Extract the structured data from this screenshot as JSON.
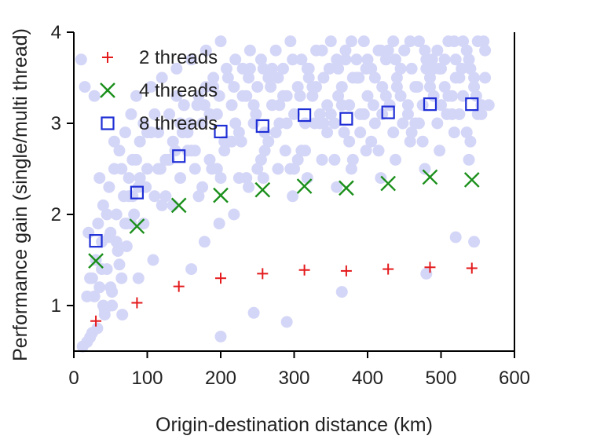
{
  "chart_data": {
    "type": "scatter",
    "xlabel": "Origin-destination distance (km)",
    "ylabel": "Performance gain (single/multi thread)",
    "xlim": [
      0,
      600
    ],
    "ylim": [
      0.5,
      4
    ],
    "xticks": [
      0,
      100,
      200,
      300,
      400,
      500,
      600
    ],
    "xtick_labels": [
      "0",
      "100",
      "200",
      "300",
      "400",
      "500",
      "600"
    ],
    "yticks": [
      1,
      2,
      3,
      4
    ],
    "ytick_labels": [
      "1",
      "2",
      "3",
      "4"
    ],
    "grid": false,
    "legend_position": "top-left",
    "series": [
      {
        "name": "2 threads",
        "marker": "plus",
        "color": "#e41a1c",
        "x": [
          30,
          86,
          143,
          200,
          257,
          314,
          371,
          428,
          485,
          542
        ],
        "y": [
          0.83,
          1.03,
          1.21,
          1.3,
          1.35,
          1.39,
          1.38,
          1.4,
          1.42,
          1.41
        ]
      },
      {
        "name": "4 threads",
        "marker": "x",
        "color": "#1a8f1a",
        "x": [
          30,
          86,
          143,
          200,
          257,
          314,
          371,
          428,
          485,
          542
        ],
        "y": [
          1.49,
          1.87,
          2.1,
          2.21,
          2.27,
          2.31,
          2.29,
          2.34,
          2.41,
          2.38
        ]
      },
      {
        "name": "8 threads",
        "marker": "square",
        "color": "#1f2fd6",
        "x": [
          30,
          86,
          143,
          200,
          257,
          314,
          371,
          428,
          485,
          542
        ],
        "y": [
          1.71,
          2.24,
          2.64,
          2.91,
          2.97,
          3.09,
          3.05,
          3.12,
          3.21,
          3.21
        ]
      }
    ],
    "background_scatter": {
      "color": "#d4d6f7",
      "x": [
        12,
        18,
        22,
        25,
        28,
        30,
        33,
        35,
        38,
        40,
        42,
        45,
        48,
        50,
        52,
        55,
        58,
        60,
        62,
        65,
        68,
        70,
        72,
        75,
        78,
        80,
        82,
        85,
        88,
        90,
        95,
        100,
        105,
        110,
        115,
        120,
        125,
        130,
        135,
        140,
        145,
        150,
        155,
        160,
        165,
        170,
        175,
        180,
        185,
        190,
        195,
        200,
        205,
        210,
        215,
        220,
        225,
        230,
        235,
        240,
        245,
        250,
        255,
        260,
        265,
        270,
        275,
        280,
        285,
        290,
        295,
        300,
        305,
        310,
        315,
        320,
        325,
        330,
        335,
        340,
        345,
        350,
        355,
        360,
        365,
        370,
        375,
        380,
        385,
        390,
        395,
        400,
        405,
        410,
        415,
        420,
        425,
        430,
        435,
        440,
        445,
        450,
        455,
        460,
        465,
        470,
        475,
        480,
        485,
        490,
        495,
        500,
        505,
        510,
        515,
        520,
        525,
        530,
        535,
        540,
        545,
        550,
        555,
        560,
        20,
        35,
        55,
        75,
        95,
        115,
        135,
        155,
        175,
        195,
        215,
        235,
        255,
        275,
        295,
        315,
        335,
        355,
        375,
        395,
        415,
        435,
        455,
        475,
        495,
        515,
        535,
        555,
        25,
        45,
        65,
        85,
        105,
        125,
        145,
        165,
        185,
        205,
        225,
        245,
        265,
        285,
        305,
        325,
        345,
        365,
        385,
        405,
        425,
        445,
        465,
        485,
        505,
        525,
        545,
        565,
        15,
        40,
        60,
        80,
        100,
        120,
        140,
        160,
        180,
        200,
        220,
        240,
        260,
        280,
        300,
        320,
        340,
        360,
        380,
        400,
        420,
        440,
        460,
        480,
        500,
        520,
        540,
        560,
        28,
        50,
        70,
        90,
        110,
        130,
        150,
        170,
        190,
        210,
        230,
        250,
        270,
        290,
        310,
        330,
        350,
        370,
        390,
        410,
        430,
        450,
        470,
        490,
        510,
        530,
        550,
        10,
        22,
        32,
        42,
        52,
        62,
        72,
        48,
        66,
        88,
        108,
        128,
        148,
        168,
        188,
        208,
        228,
        248,
        268,
        288,
        308,
        328,
        348,
        368,
        388,
        408,
        428,
        448,
        468,
        488,
        508,
        528,
        548,
        160,
        178,
        198,
        218,
        238,
        258,
        278,
        298,
        318,
        338,
        358,
        378,
        398,
        418,
        438,
        458,
        478,
        498,
        518,
        538,
        18,
        38,
        58,
        78,
        98,
        118,
        138,
        158,
        178,
        198,
        218,
        238,
        258,
        278,
        298,
        318,
        338,
        358,
        378,
        398,
        418,
        438,
        458,
        478,
        498,
        518,
        538,
        558,
        200,
        245,
        290,
        365,
        480,
        520,
        545
      ],
      "y": [
        0.55,
        0.6,
        1.3,
        0.7,
        1.1,
        1.5,
        1.9,
        1.2,
        1.7,
        2.1,
        0.9,
        1.4,
        2.3,
        1.8,
        1.0,
        2.5,
        2.0,
        1.6,
        2.7,
        1.3,
        2.2,
        2.9,
        1.9,
        2.4,
        3.1,
        2.6,
        2.0,
        3.3,
        2.3,
        2.8,
        3.0,
        2.5,
        3.4,
        2.2,
        2.9,
        3.5,
        2.6,
        3.1,
        2.8,
        3.6,
        2.4,
        3.2,
        2.9,
        3.7,
        2.7,
        3.3,
        3.0,
        3.8,
        2.6,
        3.4,
        3.1,
        3.9,
        2.8,
        3.5,
        3.2,
        3.7,
        2.9,
        3.6,
        3.3,
        3.8,
        3.0,
        3.4,
        3.7,
        2.9,
        3.5,
        3.2,
        3.8,
        3.0,
        3.6,
        3.3,
        3.9,
        3.1,
        3.4,
        3.7,
        3.0,
        3.6,
        3.3,
        3.8,
        3.1,
        3.5,
        3.2,
        3.9,
        3.0,
        3.6,
        3.4,
        3.8,
        3.2,
        3.5,
        3.7,
        3.1,
        3.9,
        3.3,
        3.6,
        3.0,
        3.8,
        3.4,
        3.7,
        3.2,
        3.9,
        3.5,
        3.3,
        3.8,
        3.1,
        3.6,
        3.4,
        3.9,
        3.2,
        3.7,
        3.5,
        3.3,
        3.8,
        3.6,
        3.4,
        3.9,
        3.1,
        3.7,
        3.5,
        3.3,
        3.8,
        3.6,
        3.4,
        3.9,
        3.2,
        3.5,
        1.8,
        2.4,
        2.8,
        2.2,
        1.9,
        2.5,
        2.1,
        2.7,
        2.3,
        2.5,
        2.8,
        2.4,
        2.6,
        2.9,
        2.5,
        2.7,
        3.0,
        2.6,
        2.8,
        3.1,
        2.7,
        2.9,
        3.2,
        2.8,
        3.0,
        3.3,
        2.9,
        3.1,
        1.3,
        2.0,
        2.5,
        2.6,
        2.9,
        2.2,
        3.0,
        2.5,
        3.1,
        2.7,
        2.4,
        3.2,
        2.8,
        3.3,
        2.6,
        3.4,
        2.9,
        3.2,
        3.5,
        2.8,
        3.3,
        3.6,
        3.0,
        3.4,
        3.7,
        3.1,
        3.5,
        3.2,
        3.4,
        1.0,
        1.6,
        2.2,
        2.9,
        2.1,
        3.3,
        2.7,
        3.4,
        2.4,
        3.0,
        3.6,
        2.7,
        3.2,
        2.5,
        3.5,
        3.0,
        3.3,
        2.6,
        3.7,
        3.1,
        3.4,
        2.9,
        3.6,
        3.2,
        3.5,
        2.8,
        3.8,
        3.3,
        1.2,
        1.9,
        2.4,
        3.1,
        2.6,
        3.2,
        2.2,
        3.5,
        2.8,
        3.3,
        2.5,
        3.6,
        3.0,
        2.7,
        3.4,
        3.1,
        3.7,
        2.9,
        3.5,
        3.2,
        3.8,
        3.0,
        3.6,
        3.3,
        3.9,
        3.1,
        3.7,
        0.65,
        0.75,
        0.95,
        1.15,
        1.45,
        1.65,
        1.75,
        0.9,
        1.3,
        1.5,
        2.6,
        2.9,
        3.2,
        2.5,
        3.6,
        2.8,
        3.1,
        3.4,
        2.7,
        3.3,
        3.0,
        3.6,
        2.9,
        3.5,
        3.2,
        3.8,
        3.0,
        3.4,
        3.7,
        3.1,
        3.6,
        3.3,
        1.4,
        1.7,
        1.9,
        2.0,
        2.3,
        2.4,
        2.5,
        2.2,
        2.4,
        2.6,
        2.3,
        2.5,
        2.7,
        2.4,
        2.6,
        2.8,
        2.5,
        2.7,
        2.9,
        2.6,
        1.1,
        1.4,
        1.7,
        1.9,
        2.3,
        2.5,
        2.7,
        3.0,
        3.2,
        3.3,
        3.4,
        3.5,
        3.6,
        3.5,
        3.7,
        3.6,
        3.8,
        3.7,
        3.9,
        3.6,
        3.8,
        3.7,
        3.9,
        3.8,
        3.6,
        3.9,
        3.7,
        3.9,
        0.66,
        0.92,
        0.82,
        1.15,
        1.35,
        1.75,
        1.7
      ]
    }
  }
}
